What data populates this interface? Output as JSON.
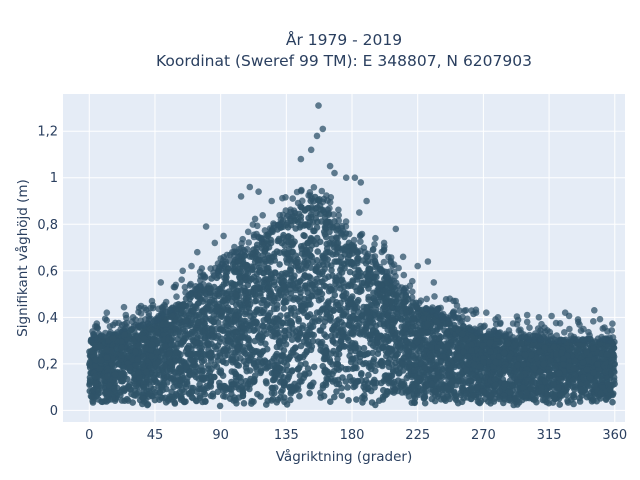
{
  "chart_data": {
    "type": "scatter",
    "title": "År 1979 - 2019",
    "subtitle": "Koordinat (Sweref 99 TM): E 348807, N 6207903",
    "xlabel": "Vågriktning (grader)",
    "ylabel": "Signifikant våghöjd (m)",
    "xlim": [
      -18,
      367
    ],
    "ylim": [
      -0.05,
      1.36
    ],
    "x_ticks": [
      0,
      45,
      90,
      135,
      180,
      225,
      270,
      315,
      360
    ],
    "x_tick_labels": [
      "0",
      "45",
      "90",
      "135",
      "180",
      "225",
      "270",
      "315",
      "360"
    ],
    "y_ticks": [
      0,
      0.2,
      0.4,
      0.6,
      0.8,
      1.0,
      1.2
    ],
    "y_tick_labels": [
      "0",
      "0,2",
      "0,4",
      "0,6",
      "0,8",
      "1",
      "1,2"
    ],
    "grid": true,
    "legend": false,
    "colors": {
      "marker": "#2f5369",
      "plot_bg": "#e5ecf6",
      "grid": "#ffffff",
      "text": "#2a3f5f"
    },
    "envelope": {
      "x": [
        0,
        45,
        90,
        135,
        155,
        180,
        225,
        270,
        315,
        360
      ],
      "y_min": [
        0.03,
        0.03,
        0.02,
        0.03,
        0.04,
        0.03,
        0.03,
        0.03,
        0.03,
        0.04
      ],
      "y_max_dense": [
        0.3,
        0.38,
        0.6,
        0.82,
        0.92,
        0.72,
        0.45,
        0.32,
        0.3,
        0.3
      ]
    },
    "outliers": [
      {
        "x": 157,
        "y": 1.31
      },
      {
        "x": 160,
        "y": 1.21
      },
      {
        "x": 156,
        "y": 1.18
      },
      {
        "x": 152,
        "y": 1.12
      },
      {
        "x": 145,
        "y": 1.08
      },
      {
        "x": 165,
        "y": 1.05
      },
      {
        "x": 168,
        "y": 1.02
      },
      {
        "x": 176,
        "y": 1.0
      },
      {
        "x": 182,
        "y": 1.0
      },
      {
        "x": 186,
        "y": 0.98
      },
      {
        "x": 110,
        "y": 0.96
      },
      {
        "x": 116,
        "y": 0.94
      },
      {
        "x": 104,
        "y": 0.92
      },
      {
        "x": 190,
        "y": 0.9
      },
      {
        "x": 125,
        "y": 0.9
      },
      {
        "x": 185,
        "y": 0.85
      },
      {
        "x": 80,
        "y": 0.79
      },
      {
        "x": 210,
        "y": 0.78
      },
      {
        "x": 92,
        "y": 0.75
      },
      {
        "x": 196,
        "y": 0.74
      },
      {
        "x": 86,
        "y": 0.72
      },
      {
        "x": 202,
        "y": 0.72
      },
      {
        "x": 98,
        "y": 0.68
      },
      {
        "x": 74,
        "y": 0.68
      },
      {
        "x": 215,
        "y": 0.66
      },
      {
        "x": 232,
        "y": 0.64
      },
      {
        "x": 225,
        "y": 0.62
      },
      {
        "x": 70,
        "y": 0.62
      },
      {
        "x": 64,
        "y": 0.6
      },
      {
        "x": 236,
        "y": 0.55
      },
      {
        "x": 58,
        "y": 0.53
      },
      {
        "x": 49,
        "y": 0.55
      },
      {
        "x": 247,
        "y": 0.48
      },
      {
        "x": 251,
        "y": 0.47
      },
      {
        "x": 43,
        "y": 0.47
      },
      {
        "x": 38,
        "y": 0.44
      },
      {
        "x": 258,
        "y": 0.43
      },
      {
        "x": 265,
        "y": 0.42
      },
      {
        "x": 272,
        "y": 0.42
      },
      {
        "x": 300,
        "y": 0.41
      },
      {
        "x": 308,
        "y": 0.4
      },
      {
        "x": 326,
        "y": 0.42
      },
      {
        "x": 346,
        "y": 0.43
      },
      {
        "x": 12,
        "y": 0.42
      },
      {
        "x": 25,
        "y": 0.41
      },
      {
        "x": 30,
        "y": 0.4
      },
      {
        "x": 280,
        "y": 0.4
      },
      {
        "x": 5,
        "y": 0.36
      },
      {
        "x": 335,
        "y": 0.38
      },
      {
        "x": 355,
        "y": 0.34
      },
      {
        "x": 293,
        "y": 0.37
      }
    ]
  }
}
